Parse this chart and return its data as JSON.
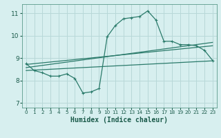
{
  "xlabel": "Humidex (Indice chaleur)",
  "background_color": "#d7efef",
  "grid_color": "#b8d8d8",
  "line_color": "#2a7a6a",
  "xlim": [
    -0.5,
    23.5
  ],
  "ylim": [
    6.8,
    11.4
  ],
  "xticks": [
    0,
    1,
    2,
    3,
    4,
    5,
    6,
    7,
    8,
    9,
    10,
    11,
    12,
    13,
    14,
    15,
    16,
    17,
    18,
    19,
    20,
    21,
    22,
    23
  ],
  "yticks": [
    7,
    8,
    9,
    10,
    11
  ],
  "series": [
    [
      0,
      8.75
    ],
    [
      1,
      8.45
    ],
    [
      2,
      8.35
    ],
    [
      3,
      8.2
    ],
    [
      4,
      8.2
    ],
    [
      5,
      8.3
    ],
    [
      6,
      8.1
    ],
    [
      7,
      7.45
    ],
    [
      8,
      7.5
    ],
    [
      9,
      7.65
    ],
    [
      10,
      9.95
    ],
    [
      11,
      10.45
    ],
    [
      12,
      10.75
    ],
    [
      13,
      10.8
    ],
    [
      14,
      10.85
    ],
    [
      15,
      11.1
    ],
    [
      16,
      10.7
    ],
    [
      17,
      9.75
    ],
    [
      18,
      9.75
    ],
    [
      19,
      9.6
    ],
    [
      20,
      9.6
    ],
    [
      21,
      9.55
    ],
    [
      22,
      9.35
    ],
    [
      23,
      8.9
    ]
  ],
  "line2": [
    [
      0,
      8.72
    ],
    [
      23,
      9.55
    ]
  ],
  "line3": [
    [
      0,
      8.58
    ],
    [
      23,
      9.7
    ]
  ],
  "line4": [
    [
      0,
      8.45
    ],
    [
      23,
      8.88
    ]
  ]
}
